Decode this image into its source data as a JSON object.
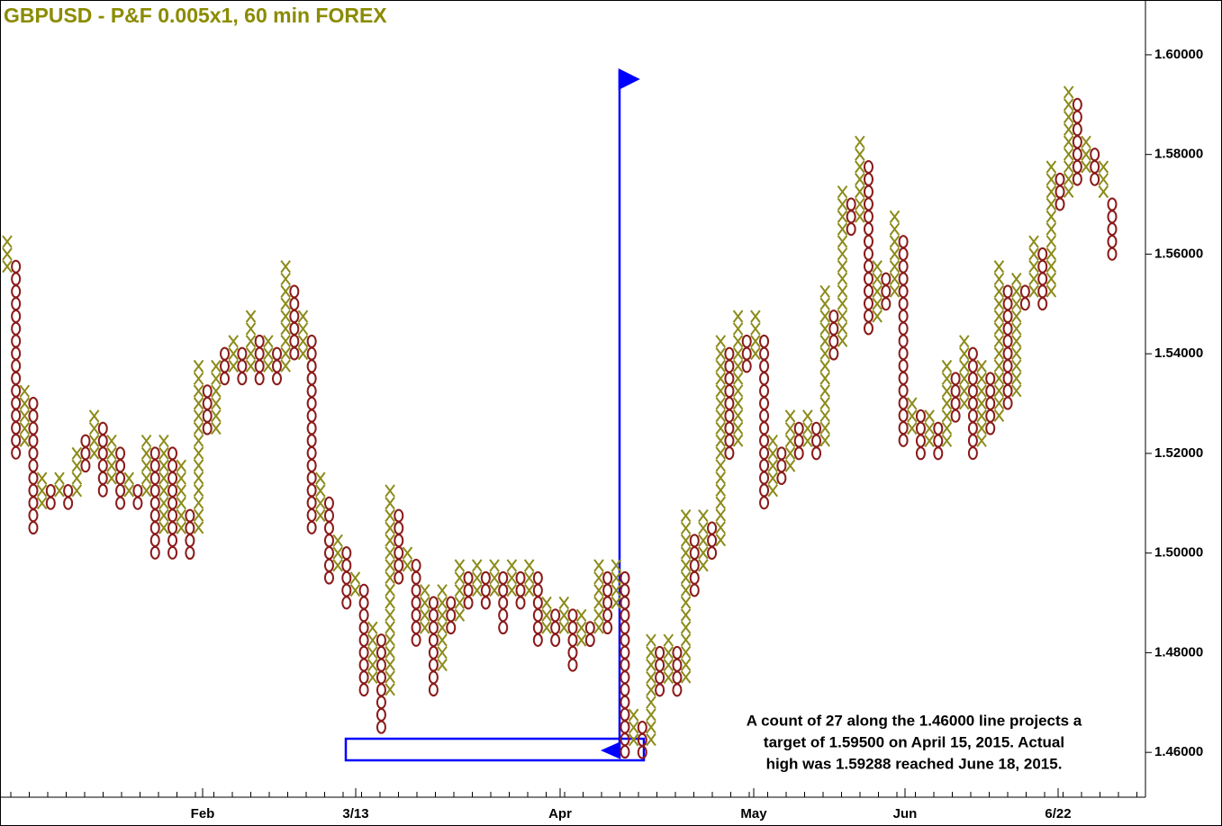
{
  "chart_data": {
    "type": "point-and-figure",
    "title": "GBPUSD - P&F 0.005x1, 60 min  FOREX",
    "annotation": [
      "A count of 27 along the 1.46000 line projects a",
      "target of 1.59500 on April 15, 2015.  Actual",
      "high was 1.59288 reached June 18, 2015."
    ],
    "x_labels": [
      "Feb",
      "3/13",
      "Apr",
      "May",
      "Jun",
      "6/22"
    ],
    "x_color": "#8b8b1a",
    "o_color": "#8b1a1a",
    "title_color": "#8b8b00",
    "ylim": [
      1.451,
      1.611
    ],
    "yticks": [
      {
        "value": 1.46,
        "label": "1.46000"
      },
      {
        "value": 1.48,
        "label": "1.48000"
      },
      {
        "value": 1.5,
        "label": "1.50000"
      },
      {
        "value": 1.52,
        "label": "1.52000"
      },
      {
        "value": 1.54,
        "label": "1.54000"
      },
      {
        "value": 1.56,
        "label": "1.56000"
      },
      {
        "value": 1.58,
        "label": "1.58000"
      },
      {
        "value": 1.6,
        "label": "1.60000"
      }
    ],
    "columns": [
      {
        "type": "X",
        "low": 1.5575,
        "high": 1.5625
      },
      {
        "type": "O",
        "low": 1.52,
        "high": 1.5575
      },
      {
        "type": "X",
        "low": 1.5225,
        "high": 1.5325
      },
      {
        "type": "O",
        "low": 1.505,
        "high": 1.53
      },
      {
        "type": "X",
        "low": 1.51,
        "high": 1.515
      },
      {
        "type": "O",
        "low": 1.51,
        "high": 1.5125
      },
      {
        "type": "X",
        "low": 1.5125,
        "high": 1.515
      },
      {
        "type": "O",
        "low": 1.51,
        "high": 1.5125
      },
      {
        "type": "X",
        "low": 1.5125,
        "high": 1.52
      },
      {
        "type": "O",
        "low": 1.5175,
        "high": 1.5225
      },
      {
        "type": "X",
        "low": 1.52,
        "high": 1.5275
      },
      {
        "type": "O",
        "low": 1.5125,
        "high": 1.525
      },
      {
        "type": "X",
        "low": 1.515,
        "high": 1.5225
      },
      {
        "type": "O",
        "low": 1.51,
        "high": 1.52
      },
      {
        "type": "X",
        "low": 1.5125,
        "high": 1.515
      },
      {
        "type": "O",
        "low": 1.51,
        "high": 1.5125
      },
      {
        "type": "X",
        "low": 1.5125,
        "high": 1.5225
      },
      {
        "type": "O",
        "low": 1.5,
        "high": 1.52
      },
      {
        "type": "X",
        "low": 1.505,
        "high": 1.5225
      },
      {
        "type": "O",
        "low": 1.5,
        "high": 1.52
      },
      {
        "type": "X",
        "low": 1.505,
        "high": 1.5175
      },
      {
        "type": "O",
        "low": 1.5,
        "high": 1.5075
      },
      {
        "type": "X",
        "low": 1.505,
        "high": 1.5375
      },
      {
        "type": "O",
        "low": 1.525,
        "high": 1.5325
      },
      {
        "type": "X",
        "low": 1.525,
        "high": 1.5375
      },
      {
        "type": "O",
        "low": 1.535,
        "high": 1.54
      },
      {
        "type": "X",
        "low": 1.5375,
        "high": 1.5425
      },
      {
        "type": "O",
        "low": 1.535,
        "high": 1.54
      },
      {
        "type": "X",
        "low": 1.5375,
        "high": 1.5475
      },
      {
        "type": "O",
        "low": 1.535,
        "high": 1.5425
      },
      {
        "type": "X",
        "low": 1.5375,
        "high": 1.5425
      },
      {
        "type": "O",
        "low": 1.535,
        "high": 1.54
      },
      {
        "type": "X",
        "low": 1.5375,
        "high": 1.5575
      },
      {
        "type": "O",
        "low": 1.54,
        "high": 1.5525
      },
      {
        "type": "X",
        "low": 1.54,
        "high": 1.5475
      },
      {
        "type": "O",
        "low": 1.505,
        "high": 1.5425
      },
      {
        "type": "X",
        "low": 1.5075,
        "high": 1.515
      },
      {
        "type": "O",
        "low": 1.495,
        "high": 1.51
      },
      {
        "type": "X",
        "low": 1.4975,
        "high": 1.5025
      },
      {
        "type": "O",
        "low": 1.49,
        "high": 1.5
      },
      {
        "type": "X",
        "low": 1.4925,
        "high": 1.495
      },
      {
        "type": "O",
        "low": 1.4725,
        "high": 1.4925
      },
      {
        "type": "X",
        "low": 1.475,
        "high": 1.485
      },
      {
        "type": "O",
        "low": 1.465,
        "high": 1.4825
      },
      {
        "type": "X",
        "low": 1.4725,
        "high": 1.5125
      },
      {
        "type": "O",
        "low": 1.495,
        "high": 1.5075
      },
      {
        "type": "X",
        "low": 1.4975,
        "high": 1.5
      },
      {
        "type": "O",
        "low": 1.4825,
        "high": 1.4975
      },
      {
        "type": "X",
        "low": 1.485,
        "high": 1.4925
      },
      {
        "type": "O",
        "low": 1.4725,
        "high": 1.49
      },
      {
        "type": "X",
        "low": 1.4775,
        "high": 1.4925
      },
      {
        "type": "O",
        "low": 1.485,
        "high": 1.49
      },
      {
        "type": "X",
        "low": 1.4875,
        "high": 1.4975
      },
      {
        "type": "O",
        "low": 1.49,
        "high": 1.495
      },
      {
        "type": "X",
        "low": 1.4925,
        "high": 1.4975
      },
      {
        "type": "O",
        "low": 1.49,
        "high": 1.495
      },
      {
        "type": "X",
        "low": 1.4925,
        "high": 1.4975
      },
      {
        "type": "O",
        "low": 1.485,
        "high": 1.495
      },
      {
        "type": "X",
        "low": 1.4925,
        "high": 1.4975
      },
      {
        "type": "O",
        "low": 1.49,
        "high": 1.495
      },
      {
        "type": "X",
        "low": 1.4925,
        "high": 1.4975
      },
      {
        "type": "O",
        "low": 1.4825,
        "high": 1.495
      },
      {
        "type": "X",
        "low": 1.485,
        "high": 1.49
      },
      {
        "type": "O",
        "low": 1.4825,
        "high": 1.4875
      },
      {
        "type": "X",
        "low": 1.485,
        "high": 1.49
      },
      {
        "type": "O",
        "low": 1.4775,
        "high": 1.4875
      },
      {
        "type": "X",
        "low": 1.4825,
        "high": 1.4875
      },
      {
        "type": "O",
        "low": 1.4825,
        "high": 1.485
      },
      {
        "type": "X",
        "low": 1.485,
        "high": 1.4975
      },
      {
        "type": "O",
        "low": 1.485,
        "high": 1.495
      },
      {
        "type": "X",
        "low": 1.49,
        "high": 1.4975
      },
      {
        "type": "O",
        "low": 1.46,
        "high": 1.495
      },
      {
        "type": "X",
        "low": 1.4625,
        "high": 1.4675
      },
      {
        "type": "O",
        "low": 1.46,
        "high": 1.465
      },
      {
        "type": "X",
        "low": 1.4625,
        "high": 1.4825
      },
      {
        "type": "O",
        "low": 1.4725,
        "high": 1.48
      },
      {
        "type": "X",
        "low": 1.475,
        "high": 1.4825
      },
      {
        "type": "O",
        "low": 1.4725,
        "high": 1.48
      },
      {
        "type": "X",
        "low": 1.475,
        "high": 1.5075
      },
      {
        "type": "O",
        "low": 1.4925,
        "high": 1.5025
      },
      {
        "type": "X",
        "low": 1.4975,
        "high": 1.5075
      },
      {
        "type": "O",
        "low": 1.5,
        "high": 1.505
      },
      {
        "type": "X",
        "low": 1.5025,
        "high": 1.5425
      },
      {
        "type": "O",
        "low": 1.52,
        "high": 1.54
      },
      {
        "type": "X",
        "low": 1.5225,
        "high": 1.5475
      },
      {
        "type": "O",
        "low": 1.5375,
        "high": 1.5425
      },
      {
        "type": "X",
        "low": 1.54,
        "high": 1.5475
      },
      {
        "type": "O",
        "low": 1.51,
        "high": 1.5425
      },
      {
        "type": "X",
        "low": 1.5125,
        "high": 1.5225
      },
      {
        "type": "O",
        "low": 1.515,
        "high": 1.52
      },
      {
        "type": "X",
        "low": 1.5175,
        "high": 1.5275
      },
      {
        "type": "O",
        "low": 1.52,
        "high": 1.525
      },
      {
        "type": "X",
        "low": 1.5225,
        "high": 1.5275
      },
      {
        "type": "O",
        "low": 1.52,
        "high": 1.525
      },
      {
        "type": "X",
        "low": 1.5225,
        "high": 1.5525
      },
      {
        "type": "O",
        "low": 1.54,
        "high": 1.5475
      },
      {
        "type": "X",
        "low": 1.5425,
        "high": 1.5725
      },
      {
        "type": "O",
        "low": 1.565,
        "high": 1.57
      },
      {
        "type": "X",
        "low": 1.5675,
        "high": 1.5825
      },
      {
        "type": "O",
        "low": 1.545,
        "high": 1.5775
      },
      {
        "type": "X",
        "low": 1.5475,
        "high": 1.5575
      },
      {
        "type": "O",
        "low": 1.55,
        "high": 1.555
      },
      {
        "type": "X",
        "low": 1.5525,
        "high": 1.5675
      },
      {
        "type": "O",
        "low": 1.5225,
        "high": 1.5625
      },
      {
        "type": "X",
        "low": 1.525,
        "high": 1.53
      },
      {
        "type": "O",
        "low": 1.52,
        "high": 1.5275
      },
      {
        "type": "X",
        "low": 1.5225,
        "high": 1.5275
      },
      {
        "type": "O",
        "low": 1.52,
        "high": 1.525
      },
      {
        "type": "X",
        "low": 1.5225,
        "high": 1.5375
      },
      {
        "type": "O",
        "low": 1.5275,
        "high": 1.535
      },
      {
        "type": "X",
        "low": 1.53,
        "high": 1.5425
      },
      {
        "type": "O",
        "low": 1.52,
        "high": 1.54
      },
      {
        "type": "X",
        "low": 1.5225,
        "high": 1.5375
      },
      {
        "type": "O",
        "low": 1.525,
        "high": 1.535
      },
      {
        "type": "X",
        "low": 1.5275,
        "high": 1.5575
      },
      {
        "type": "O",
        "low": 1.53,
        "high": 1.5525
      },
      {
        "type": "X",
        "low": 1.5325,
        "high": 1.555
      },
      {
        "type": "O",
        "low": 1.55,
        "high": 1.5525
      },
      {
        "type": "X",
        "low": 1.5525,
        "high": 1.5625
      },
      {
        "type": "O",
        "low": 1.55,
        "high": 1.56
      },
      {
        "type": "X",
        "low": 1.5525,
        "high": 1.5775
      },
      {
        "type": "O",
        "low": 1.57,
        "high": 1.575
      },
      {
        "type": "X",
        "low": 1.5725,
        "high": 1.5925
      },
      {
        "type": "O",
        "low": 1.575,
        "high": 1.59
      },
      {
        "type": "X",
        "low": 1.5775,
        "high": 1.5825
      },
      {
        "type": "O",
        "low": 1.575,
        "high": 1.58
      },
      {
        "type": "X",
        "low": 1.5725,
        "high": 1.5775
      },
      {
        "type": "O",
        "low": 1.56,
        "high": 1.57
      }
    ]
  }
}
